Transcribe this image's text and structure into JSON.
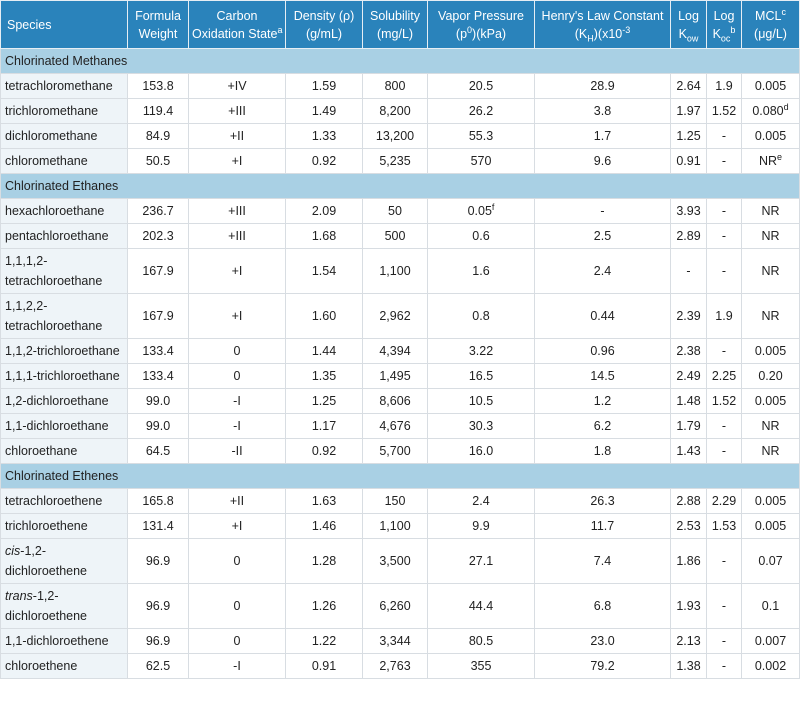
{
  "header": [
    [
      [
        {
          "text": "Species"
        }
      ]
    ],
    [
      [
        {
          "text": "Formula"
        }
      ],
      [
        {
          "text": "Weight"
        }
      ]
    ],
    [
      [
        {
          "text": "Carbon"
        }
      ],
      [
        {
          "text": "Oxidation State"
        },
        {
          "sup": "a"
        }
      ]
    ],
    [
      [
        {
          "text": "Density (ρ)"
        }
      ],
      [
        {
          "text": "(g/mL)"
        }
      ]
    ],
    [
      [
        {
          "text": "Solubility"
        }
      ],
      [
        {
          "text": "(mg/L)"
        }
      ]
    ],
    [
      [
        {
          "text": "Vapor Pressure"
        }
      ],
      [
        {
          "text": "(p"
        },
        {
          "sup": "0"
        },
        {
          "text": ")(kPa)"
        }
      ]
    ],
    [
      [
        {
          "text": "Henry's Law Constant"
        }
      ],
      [
        {
          "text": "(K"
        },
        {
          "sub": "H"
        },
        {
          "text": ")(x10"
        },
        {
          "sup": "-3"
        }
      ]
    ],
    [
      [
        {
          "text": "Log"
        }
      ],
      [
        {
          "text": "K"
        },
        {
          "sub": "ow"
        }
      ]
    ],
    [
      [
        {
          "text": "Log"
        }
      ],
      [
        {
          "text": "K"
        },
        {
          "sub": "oc"
        },
        {
          "sup": "b"
        }
      ]
    ],
    [
      [
        {
          "text": "MCL"
        },
        {
          "sup": "c"
        }
      ],
      [
        {
          "text": "(μg/L)"
        }
      ]
    ]
  ],
  "sections": [
    {
      "title": "Chlorinated Methanes",
      "rows": [
        [
          "tetrachloromethane",
          "153.8",
          "+IV",
          "1.59",
          "800",
          "20.5",
          "28.9",
          "2.64",
          "1.9",
          "0.005"
        ],
        [
          "trichloromethane",
          "119.4",
          "+III",
          "1.49",
          "8,200",
          "26.2",
          "3.8",
          "1.97",
          "1.52",
          [
            {
              "text": "0.080"
            },
            {
              "sup": "d"
            }
          ]
        ],
        [
          "dichloromethane",
          "84.9",
          "+II",
          "1.33",
          "13,200",
          "55.3",
          "1.7",
          "1.25",
          "-",
          "0.005"
        ],
        [
          "chloromethane",
          "50.5",
          "+I",
          "0.92",
          "5,235",
          "570",
          "9.6",
          "0.91",
          "-",
          [
            {
              "text": "NR"
            },
            {
              "sup": "e"
            }
          ]
        ]
      ]
    },
    {
      "title": "Chlorinated Ethanes",
      "rows": [
        [
          "hexachloroethane",
          "236.7",
          "+III",
          "2.09",
          "50",
          [
            {
              "text": "0.05"
            },
            {
              "sup": "f"
            }
          ],
          "-",
          "3.93",
          "-",
          "NR"
        ],
        [
          "pentachloroethane",
          "202.3",
          "+III",
          "1.68",
          "500",
          "0.6",
          "2.5",
          "2.89",
          "-",
          "NR"
        ],
        [
          "1,1,1,2-tetrachloroethane",
          "167.9",
          "+I",
          "1.54",
          "1,100",
          "1.6",
          "2.4",
          "-",
          "-",
          "NR"
        ],
        [
          "1,1,2,2-tetrachloroethane",
          "167.9",
          "+I",
          "1.60",
          "2,962",
          "0.8",
          "0.44",
          "2.39",
          "1.9",
          "NR"
        ],
        [
          "1,1,2-trichloroethane",
          "133.4",
          "0",
          "1.44",
          "4,394",
          "3.22",
          "0.96",
          "2.38",
          "-",
          "0.005"
        ],
        [
          "1,1,1-trichloroethane",
          "133.4",
          "0",
          "1.35",
          "1,495",
          "16.5",
          "14.5",
          "2.49",
          "2.25",
          "0.20"
        ],
        [
          "1,2-dichloroethane",
          "99.0",
          "-I",
          "1.25",
          "8,606",
          "10.5",
          "1.2",
          "1.48",
          "1.52",
          "0.005"
        ],
        [
          "1,1-dichloroethane",
          "99.0",
          "-I",
          "1.17",
          "4,676",
          "30.3",
          "6.2",
          "1.79",
          "-",
          "NR"
        ],
        [
          "chloroethane",
          "64.5",
          "-II",
          "0.92",
          "5,700",
          "16.0",
          "1.8",
          "1.43",
          "-",
          "NR"
        ]
      ]
    },
    {
      "title": "Chlorinated Ethenes",
      "rows": [
        [
          "tetrachloroethene",
          "165.8",
          "+II",
          "1.63",
          "150",
          "2.4",
          "26.3",
          "2.88",
          "2.29",
          "0.005"
        ],
        [
          "trichloroethene",
          "131.4",
          "+I",
          "1.46",
          "1,100",
          "9.9",
          "11.7",
          "2.53",
          "1.53",
          "0.005"
        ],
        [
          [
            {
              "italic": "cis"
            },
            {
              "text": "-1,2-dichloroethene"
            }
          ],
          "96.9",
          "0",
          "1.28",
          "3,500",
          "27.1",
          "7.4",
          "1.86",
          "-",
          "0.07"
        ],
        [
          [
            {
              "italic": "trans"
            },
            {
              "text": "-1,2-dichloroethene"
            }
          ],
          "96.9",
          "0",
          "1.26",
          "6,260",
          "44.4",
          "6.8",
          "1.93",
          "-",
          "0.1"
        ],
        [
          "1,1-dichloroethene",
          "96.9",
          "0",
          "1.22",
          "3,344",
          "80.5",
          "23.0",
          "2.13",
          "-",
          "0.007"
        ],
        [
          "chloroethene",
          "62.5",
          "-I",
          "0.91",
          "2,763",
          "355",
          "79.2",
          "1.38",
          "-",
          "0.002"
        ]
      ]
    }
  ]
}
